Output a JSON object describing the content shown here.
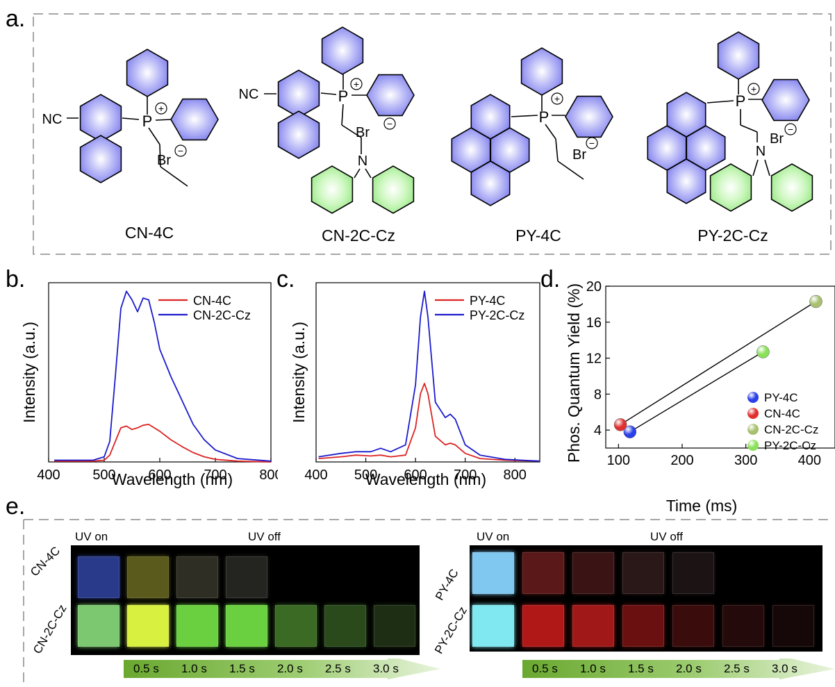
{
  "panels": {
    "a": "a.",
    "b": "b.",
    "c": "c.",
    "d": "d.",
    "e": "e."
  },
  "molecules": {
    "names": [
      "CN-4C",
      "CN-2C-Cz",
      "PY-4C",
      "PY-2C-Cz"
    ],
    "atom_labels": {
      "nc": "NC",
      "p": "P",
      "plus": "+",
      "br": "Br",
      "minus": "−",
      "n": "N"
    }
  },
  "colors": {
    "chromophore": "#8888f0",
    "carbazole": "#a8f098",
    "red_series": "#dd2222",
    "blue_series": "#1a1acc"
  },
  "chart_data": [
    {
      "type": "line",
      "panel": "b",
      "xlabel": "Wavelength (nm)",
      "ylabel": "Intensity (a.u.)",
      "xlim": [
        400,
        800
      ],
      "ylim": [
        0,
        1.05
      ],
      "xticks": [
        400,
        500,
        600,
        700,
        800
      ],
      "legend": "top-right",
      "series": [
        {
          "name": "CN-4C",
          "color": "#dd2222",
          "x": [
            410,
            480,
            500,
            510,
            520,
            530,
            540,
            550,
            560,
            570,
            580,
            590,
            600,
            620,
            640,
            660,
            680,
            700,
            740,
            800
          ],
          "y": [
            0.005,
            0.005,
            0.01,
            0.04,
            0.12,
            0.2,
            0.21,
            0.19,
            0.2,
            0.215,
            0.22,
            0.2,
            0.18,
            0.13,
            0.09,
            0.055,
            0.03,
            0.015,
            0.005,
            0.0
          ]
        },
        {
          "name": "CN-2C-Cz",
          "color": "#1a1acc",
          "x": [
            410,
            480,
            500,
            510,
            520,
            530,
            540,
            550,
            560,
            570,
            580,
            590,
            600,
            620,
            640,
            660,
            680,
            700,
            740,
            800
          ],
          "y": [
            0.01,
            0.01,
            0.03,
            0.12,
            0.5,
            0.9,
            1.0,
            0.95,
            0.88,
            0.96,
            0.95,
            0.82,
            0.66,
            0.5,
            0.36,
            0.22,
            0.13,
            0.07,
            0.02,
            0.005
          ]
        }
      ]
    },
    {
      "type": "line",
      "panel": "c",
      "xlabel": "Wavelength (nm)",
      "ylabel": "Intensity (a.u.)",
      "xlim": [
        400,
        850
      ],
      "ylim": [
        0,
        1.05
      ],
      "xticks": [
        400,
        500,
        600,
        700,
        800
      ],
      "legend": "top-right",
      "series": [
        {
          "name": "PY-4C",
          "color": "#dd2222",
          "x": [
            405,
            450,
            480,
            510,
            530,
            550,
            580,
            600,
            610,
            618,
            625,
            640,
            660,
            670,
            680,
            700,
            730,
            780,
            850
          ],
          "y": [
            0.02,
            0.03,
            0.04,
            0.035,
            0.04,
            0.03,
            0.04,
            0.2,
            0.4,
            0.46,
            0.4,
            0.15,
            0.1,
            0.11,
            0.1,
            0.05,
            0.02,
            0.01,
            0.005
          ]
        },
        {
          "name": "PY-2C-Cz",
          "color": "#1a1acc",
          "x": [
            405,
            450,
            480,
            510,
            530,
            550,
            580,
            600,
            610,
            618,
            625,
            640,
            660,
            670,
            680,
            700,
            730,
            780,
            850
          ],
          "y": [
            0.03,
            0.05,
            0.06,
            0.06,
            0.08,
            0.06,
            0.1,
            0.45,
            0.85,
            1.0,
            0.85,
            0.35,
            0.26,
            0.28,
            0.25,
            0.1,
            0.04,
            0.015,
            0.005
          ]
        }
      ]
    },
    {
      "type": "scatter",
      "panel": "d",
      "xlabel": "Time (ms)",
      "ylabel": "Phos. Quantum Yield (%)",
      "xlim": [
        80,
        440
      ],
      "ylim": [
        2,
        20
      ],
      "xticks": [
        100,
        200,
        300,
        400
      ],
      "yticks": [
        4,
        8,
        12,
        16,
        20
      ],
      "legend": "bottom-right",
      "points": [
        {
          "name": "PY-4C",
          "x": 118,
          "y": 3.8,
          "color": "#2a40e8"
        },
        {
          "name": "CN-4C",
          "x": 103,
          "y": 4.6,
          "color": "#e03030"
        },
        {
          "name": "CN-2C-Cz",
          "x": 410,
          "y": 18.3,
          "color": "#a8c070"
        },
        {
          "name": "PY-2C-Cz",
          "x": 327,
          "y": 12.7,
          "color": "#8be05a"
        }
      ],
      "lines": [
        [
          "CN-4C",
          "CN-2C-Cz"
        ],
        [
          "PY-4C",
          "PY-2C-Cz"
        ]
      ]
    }
  ],
  "photos": {
    "uv_on": "UV on",
    "uv_off": "UV off",
    "left_rows": [
      "CN-4C",
      "CN-2C-Cz"
    ],
    "right_rows": [
      "PY-4C",
      "PY-2C-Cz"
    ],
    "times": [
      "0.5 s",
      "1.0 s",
      "1.5 s",
      "2.0 s",
      "2.5 s",
      "3.0 s"
    ],
    "left_top_colors": [
      "#2a3a8a",
      "#5a5a1c",
      "#2e2e24",
      "#242420"
    ],
    "left_bottom_colors": [
      "#7bc870",
      "#d8f040",
      "#6ad040",
      "#6ad040",
      "#3a6a24",
      "#2a4a1c",
      "#1e2e14"
    ],
    "right_top_colors": [
      "#80c8f0",
      "#5a1818",
      "#3a1414",
      "#2a1818",
      "#1c1414"
    ],
    "right_bottom_colors": [
      "#80e8f0",
      "#b01818",
      "#a01818",
      "#6a1010",
      "#3a0c0c",
      "#240a0a",
      "#160808"
    ]
  }
}
